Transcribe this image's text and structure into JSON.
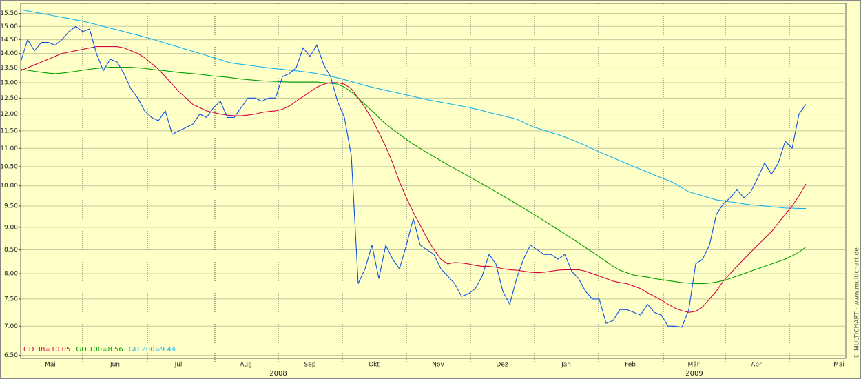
{
  "chart_data": {
    "type": "line",
    "log_scale": true,
    "grid": true,
    "legend_position": "bottom-left",
    "ylim": [
      6.45,
      15.9
    ],
    "yticks": [
      {
        "value": 6.5,
        "label": "6.50"
      },
      {
        "value": 7,
        "label": "7.00"
      },
      {
        "value": 7.5,
        "label": "7.50"
      },
      {
        "value": 8,
        "label": "8.00"
      },
      {
        "value": 8.5,
        "label": "8.50"
      },
      {
        "value": 9,
        "label": "9.00"
      },
      {
        "value": 9.5,
        "label": "9.50"
      },
      {
        "value": 10,
        "label": "10.00"
      },
      {
        "value": 10.5,
        "label": "10.50"
      },
      {
        "value": 11,
        "label": "11.00"
      },
      {
        "value": 11.5,
        "label": "11.50"
      },
      {
        "value": 12,
        "label": "12.00"
      },
      {
        "value": 12.5,
        "label": "12.50"
      },
      {
        "value": 13,
        "label": "13.00"
      },
      {
        "value": 13.5,
        "label": "13.50"
      },
      {
        "value": 14,
        "label": "14.00"
      },
      {
        "value": 14.5,
        "label": "14.50"
      },
      {
        "value": 15,
        "label": "15.00"
      },
      {
        "value": 15.5,
        "label": "15.50"
      }
    ],
    "month_labels": [
      "Mai",
      "Jun",
      "Jul",
      "Aug",
      "Sep",
      "Okt",
      "Nov",
      "Dez",
      "Jan",
      "Feb",
      "Mär",
      "Apr",
      "Mai"
    ],
    "year_labels": [
      "2008",
      "2009"
    ],
    "watermark": "© MULTICHART · www.multichart.de",
    "series": [
      {
        "color": "#0a50e6",
        "values": [
          13.7,
          14.5,
          14.1,
          14.4,
          14.4,
          14.3,
          14.5,
          14.8,
          15.0,
          14.8,
          14.9,
          14.0,
          13.4,
          13.8,
          13.7,
          13.3,
          12.8,
          12.5,
          12.1,
          11.9,
          11.8,
          12.1,
          11.4,
          11.5,
          11.6,
          11.7,
          12.0,
          11.9,
          12.2,
          12.4,
          11.9,
          11.9,
          12.2,
          12.5,
          12.5,
          12.4,
          12.5,
          12.5,
          13.2,
          13.3,
          13.5,
          14.2,
          13.9,
          14.3,
          13.6,
          13.2,
          12.4,
          11.9,
          10.8,
          7.8,
          8.1,
          8.6,
          7.9,
          8.6,
          8.3,
          8.1,
          8.6,
          9.2,
          8.6,
          8.5,
          8.4,
          8.1,
          7.95,
          7.8,
          7.55,
          7.6,
          7.7,
          7.95,
          8.4,
          8.2,
          7.65,
          7.4,
          7.9,
          8.3,
          8.6,
          8.5,
          8.4,
          8.4,
          8.3,
          8.4,
          8.05,
          7.9,
          7.65,
          7.5,
          7.5,
          7.05,
          7.1,
          7.3,
          7.3,
          7.25,
          7.2,
          7.4,
          7.25,
          7.2,
          7.0,
          7.0,
          6.98,
          7.3,
          8.2,
          8.3,
          8.6,
          9.3,
          9.55,
          9.7,
          9.9,
          9.7,
          9.85,
          10.2,
          10.6,
          10.3,
          10.6,
          11.2,
          11.0,
          12.0,
          12.3
        ]
      },
      {
        "name": "GD 38=10.05",
        "color": "#d8003c",
        "values": [
          13.4,
          13.5,
          13.6,
          13.7,
          13.8,
          13.9,
          14.0,
          14.05,
          14.1,
          14.15,
          14.2,
          14.25,
          14.25,
          14.25,
          14.25,
          14.2,
          14.1,
          14.0,
          13.85,
          13.65,
          13.45,
          13.2,
          12.95,
          12.7,
          12.5,
          12.3,
          12.2,
          12.1,
          12.05,
          12.0,
          11.97,
          11.95,
          11.95,
          11.97,
          12.0,
          12.05,
          12.08,
          12.1,
          12.15,
          12.25,
          12.4,
          12.55,
          12.7,
          12.85,
          12.95,
          13.0,
          13.0,
          12.95,
          12.8,
          12.5,
          12.2,
          11.85,
          11.45,
          11.05,
          10.6,
          10.1,
          9.7,
          9.35,
          9.05,
          8.75,
          8.5,
          8.3,
          8.2,
          8.23,
          8.22,
          8.2,
          8.17,
          8.15,
          8.15,
          8.13,
          8.1,
          8.08,
          8.07,
          8.05,
          8.03,
          8.02,
          8.03,
          8.05,
          8.07,
          8.08,
          8.08,
          8.08,
          8.05,
          8.0,
          7.95,
          7.9,
          7.85,
          7.82,
          7.8,
          7.75,
          7.7,
          7.62,
          7.55,
          7.48,
          7.4,
          7.33,
          7.28,
          7.25,
          7.27,
          7.35,
          7.5,
          7.65,
          7.85,
          8.0,
          8.15,
          8.3,
          8.45,
          8.6,
          8.75,
          8.9,
          9.1,
          9.3,
          9.5,
          9.75,
          10.05
        ]
      },
      {
        "name": "GD 100=8.56",
        "color": "#00a000",
        "values": [
          13.45,
          13.42,
          13.38,
          13.35,
          13.32,
          13.3,
          13.32,
          13.35,
          13.38,
          13.42,
          13.45,
          13.48,
          13.5,
          13.52,
          13.52,
          13.52,
          13.52,
          13.5,
          13.48,
          13.45,
          13.42,
          13.4,
          13.37,
          13.34,
          13.32,
          13.3,
          13.28,
          13.25,
          13.22,
          13.2,
          13.18,
          13.15,
          13.12,
          13.1,
          13.08,
          13.06,
          13.05,
          13.04,
          13.03,
          13.02,
          13.02,
          13.02,
          13.02,
          13.02,
          13.0,
          12.98,
          12.95,
          12.85,
          12.7,
          12.5,
          12.3,
          12.1,
          11.9,
          11.7,
          11.55,
          11.4,
          11.25,
          11.12,
          11.0,
          10.88,
          10.77,
          10.66,
          10.55,
          10.45,
          10.35,
          10.25,
          10.15,
          10.05,
          9.95,
          9.85,
          9.75,
          9.65,
          9.55,
          9.45,
          9.35,
          9.25,
          9.15,
          9.05,
          8.95,
          8.85,
          8.75,
          8.65,
          8.55,
          8.45,
          8.35,
          8.25,
          8.15,
          8.07,
          8.02,
          7.97,
          7.95,
          7.93,
          7.9,
          7.88,
          7.86,
          7.84,
          7.82,
          7.81,
          7.8,
          7.8,
          7.81,
          7.83,
          7.86,
          7.9,
          7.95,
          8.0,
          8.05,
          8.1,
          8.15,
          8.2,
          8.25,
          8.3,
          8.37,
          8.45,
          8.56
        ]
      },
      {
        "name": "GD 200=9.44",
        "color": "#10b4f0",
        "values": [
          15.65,
          15.6,
          15.55,
          15.5,
          15.45,
          15.4,
          15.35,
          15.3,
          15.25,
          15.2,
          15.13,
          15.07,
          15.0,
          14.93,
          14.87,
          14.8,
          14.73,
          14.67,
          14.6,
          14.53,
          14.45,
          14.37,
          14.3,
          14.23,
          14.15,
          14.08,
          14.0,
          13.93,
          13.85,
          13.78,
          13.7,
          13.65,
          13.62,
          13.59,
          13.56,
          13.53,
          13.5,
          13.47,
          13.45,
          13.42,
          13.4,
          13.37,
          13.34,
          13.3,
          13.26,
          13.21,
          13.16,
          13.1,
          13.04,
          12.97,
          12.91,
          12.85,
          12.8,
          12.75,
          12.7,
          12.65,
          12.6,
          12.55,
          12.5,
          12.45,
          12.41,
          12.37,
          12.33,
          12.29,
          12.25,
          12.21,
          12.16,
          12.11,
          12.05,
          12.0,
          11.95,
          11.9,
          11.85,
          11.75,
          11.65,
          11.58,
          11.52,
          11.45,
          11.39,
          11.32,
          11.25,
          11.16,
          11.08,
          10.99,
          10.9,
          10.82,
          10.74,
          10.66,
          10.58,
          10.5,
          10.43,
          10.36,
          10.28,
          10.21,
          10.14,
          10.06,
          9.95,
          9.85,
          9.8,
          9.75,
          9.7,
          9.65,
          9.63,
          9.6,
          9.58,
          9.55,
          9.53,
          9.52,
          9.5,
          9.48,
          9.47,
          9.45,
          9.45,
          9.44,
          9.44
        ]
      }
    ]
  }
}
